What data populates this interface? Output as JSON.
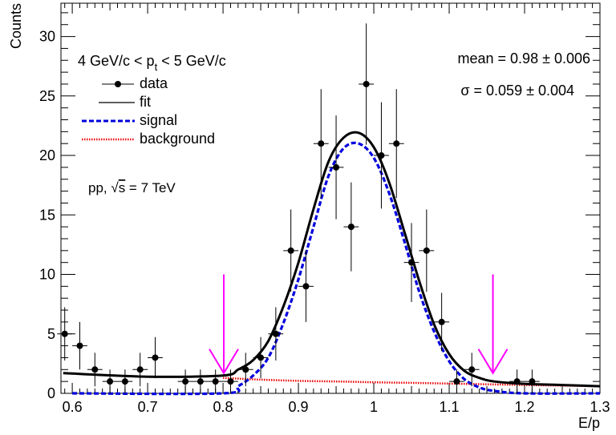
{
  "chart_data": {
    "type": "scatter",
    "xlabel": "E/p",
    "ylabel": "Counts",
    "xlim": [
      0.585,
      1.3
    ],
    "ylim": [
      0,
      32.8
    ],
    "xticks": [
      0.6,
      0.7,
      0.8,
      0.9,
      1.0,
      1.1,
      1.2,
      1.3
    ],
    "xtick_labels": [
      "0.6",
      "0.7",
      "0.8",
      "0.9",
      "1",
      "1.1",
      "1.2",
      "1.3"
    ],
    "yticks": [
      0,
      5,
      10,
      15,
      20,
      25,
      30
    ],
    "ytick_labels": [
      "0",
      "5",
      "10",
      "15",
      "20",
      "25",
      "30"
    ],
    "grid": false,
    "legend_position": "top-left",
    "annotations": {
      "pt_range": {
        "prefix": "4 GeV/c < p",
        "sub": "t",
        "suffix": " < 5 GeV/c"
      },
      "mean": "mean = 0.98 ± 0.006",
      "sigma": "σ = 0.059 ± 0.004",
      "system": {
        "prefix": "pp, ",
        "sqrt": "√",
        "var": "s",
        "suffix": " = 7 TeV"
      }
    },
    "legend": [
      {
        "label": "data",
        "style": "marker"
      },
      {
        "label": "fit",
        "style": "solid"
      },
      {
        "label": "signal",
        "style": "dashed"
      },
      {
        "label": "background",
        "style": "dotted"
      }
    ],
    "colors": {
      "fit": "#000000",
      "signal": "#0000dd",
      "background": "#ee0000",
      "arrow": "#ff00ff",
      "data": "#000000"
    },
    "arrows": [
      {
        "x": 0.801,
        "y_top": 10.0,
        "y_tip": 1.7
      },
      {
        "x": 1.158,
        "y_top": 10.0,
        "y_tip": 1.7
      }
    ],
    "series": [
      {
        "name": "data",
        "x_err": 0.01,
        "points": [
          {
            "x": 0.59,
            "y": 5,
            "err": 2.24
          },
          {
            "x": 0.61,
            "y": 4,
            "err": 2.0
          },
          {
            "x": 0.63,
            "y": 2,
            "err": 1.41
          },
          {
            "x": 0.65,
            "y": 1,
            "err": 1.0
          },
          {
            "x": 0.67,
            "y": 1,
            "err": 1.0
          },
          {
            "x": 0.69,
            "y": 2,
            "err": 1.41
          },
          {
            "x": 0.71,
            "y": 3,
            "err": 1.73
          },
          {
            "x": 0.75,
            "y": 1,
            "err": 1.0
          },
          {
            "x": 0.77,
            "y": 1,
            "err": 1.0
          },
          {
            "x": 0.79,
            "y": 1,
            "err": 1.0
          },
          {
            "x": 0.81,
            "y": 1,
            "err": 1.0
          },
          {
            "x": 0.83,
            "y": 2,
            "err": 1.41
          },
          {
            "x": 0.85,
            "y": 3,
            "err": 1.73
          },
          {
            "x": 0.87,
            "y": 5,
            "err": 2.24
          },
          {
            "x": 0.89,
            "y": 12,
            "err": 3.46
          },
          {
            "x": 0.91,
            "y": 9,
            "err": 3.0
          },
          {
            "x": 0.93,
            "y": 21,
            "err": 4.58
          },
          {
            "x": 0.95,
            "y": 19,
            "err": 4.36
          },
          {
            "x": 0.97,
            "y": 14,
            "err": 3.74
          },
          {
            "x": 0.99,
            "y": 26,
            "err": 5.1
          },
          {
            "x": 1.01,
            "y": 20,
            "err": 4.47
          },
          {
            "x": 1.03,
            "y": 21,
            "err": 4.58
          },
          {
            "x": 1.05,
            "y": 11,
            "err": 3.32
          },
          {
            "x": 1.07,
            "y": 12,
            "err": 3.46
          },
          {
            "x": 1.09,
            "y": 6,
            "err": 2.45
          },
          {
            "x": 1.11,
            "y": 1,
            "err": 1.0
          },
          {
            "x": 1.13,
            "y": 2,
            "err": 1.41
          },
          {
            "x": 1.19,
            "y": 1,
            "err": 1.0
          },
          {
            "x": 1.21,
            "y": 1,
            "err": 1.0
          }
        ]
      },
      {
        "name": "fit",
        "x": [
          0.588,
          0.7,
          0.8,
          0.82,
          0.84,
          0.86,
          0.88,
          0.9,
          0.92,
          0.94,
          0.96,
          0.98,
          1.0,
          1.02,
          1.04,
          1.06,
          1.08,
          1.1,
          1.12,
          1.14,
          1.16,
          1.2,
          1.25,
          1.3
        ],
        "y": [
          1.7,
          1.4,
          1.5,
          2.0,
          2.8,
          4.4,
          7.3,
          11.0,
          15.5,
          19.5,
          21.5,
          21.9,
          20.7,
          17.8,
          13.7,
          9.5,
          5.8,
          3.3,
          1.9,
          1.3,
          1.0,
          0.8,
          0.7,
          0.6
        ]
      },
      {
        "name": "signal",
        "x": [
          0.6,
          0.8,
          0.82,
          0.84,
          0.86,
          0.88,
          0.9,
          0.92,
          0.94,
          0.96,
          0.98,
          1.0,
          1.02,
          1.04,
          1.06,
          1.08,
          1.1,
          1.12,
          1.14,
          1.16,
          1.2,
          1.3
        ],
        "y": [
          0.0,
          0.0,
          0.6,
          1.5,
          3.0,
          5.9,
          9.6,
          14.0,
          18.3,
          20.6,
          21.0,
          19.8,
          16.9,
          12.9,
          8.6,
          5.2,
          2.7,
          1.2,
          0.5,
          0.2,
          0.0,
          0.0
        ]
      },
      {
        "name": "background",
        "x": [
          0.8,
          0.85,
          0.9,
          0.95,
          1.0,
          1.05,
          1.1,
          1.15,
          1.2,
          1.25,
          1.3
        ],
        "y": [
          1.3,
          1.15,
          1.05,
          1.0,
          0.93,
          0.88,
          0.82,
          0.76,
          0.7,
          0.65,
          0.6
        ]
      }
    ]
  }
}
